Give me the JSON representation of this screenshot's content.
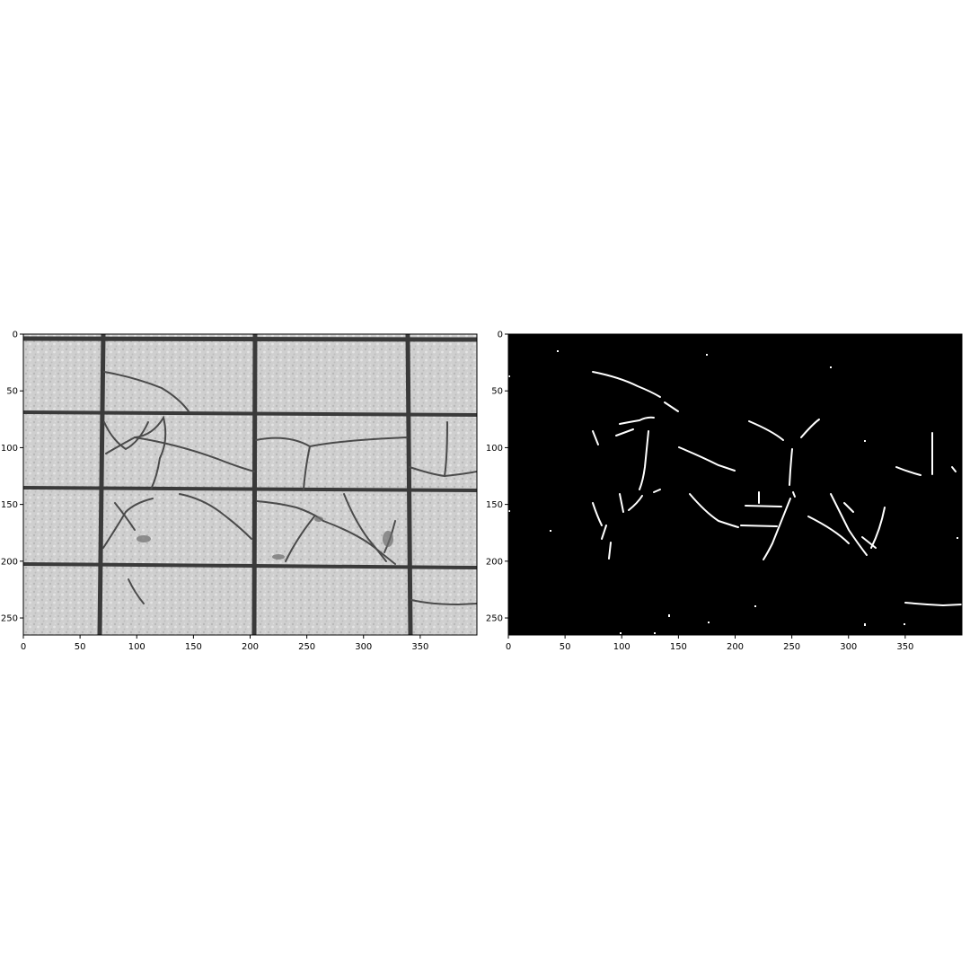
{
  "figure": {
    "background": "#ffffff",
    "panels": [
      {
        "id": "left",
        "title": "",
        "content": "grayscale photo of cracked floor tiles",
        "cmap": "gray",
        "xlim": [
          0,
          400
        ],
        "ylim": [
          265,
          0
        ],
        "xticks": [
          0,
          50,
          100,
          150,
          200,
          250,
          300,
          350
        ],
        "yticks": [
          0,
          50,
          100,
          150,
          200,
          250
        ],
        "tile_color": "#cdcdcd",
        "grout_color": "#3a3a3a",
        "crack_color": "#4a4a4a"
      },
      {
        "id": "right",
        "title": "",
        "content": "binary crack mask (white cracks on black)",
        "cmap": "binary",
        "xlim": [
          0,
          400
        ],
        "ylim": [
          265,
          0
        ],
        "xticks": [
          0,
          50,
          100,
          150,
          200,
          250,
          300,
          350
        ],
        "yticks": [
          0,
          50,
          100,
          150,
          200,
          250
        ],
        "background_color": "#000000",
        "crack_color": "#ffffff"
      }
    ]
  }
}
